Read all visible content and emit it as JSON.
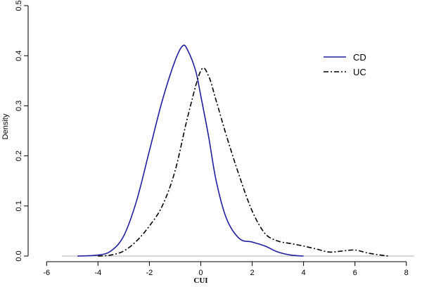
{
  "chart_data": {
    "type": "line",
    "title": "",
    "xlabel": "CUI",
    "ylabel": "Density",
    "xlim": [
      -6.5,
      8.5
    ],
    "ylim": [
      0,
      0.5
    ],
    "x_ticks": [
      -6,
      -4,
      -2,
      0,
      2,
      4,
      6,
      8
    ],
    "y_ticks": [
      0.0,
      0.1,
      0.2,
      0.3,
      0.4,
      0.5
    ],
    "x_tick_labels": [
      "-6",
      "-4",
      "-2",
      "0",
      "2",
      "4",
      "6",
      "8"
    ],
    "y_tick_labels": [
      "0.0",
      "0.1",
      "0.2",
      "0.3",
      "0.4",
      "0.5"
    ],
    "grid": false,
    "legend_position": "top-right",
    "baseline": 0,
    "series": [
      {
        "name": "CD",
        "color": "#1f1fa0",
        "style": "solid",
        "points": [
          [
            -4.8,
            0.0
          ],
          [
            -4.0,
            0.002
          ],
          [
            -3.5,
            0.01
          ],
          [
            -3.0,
            0.04
          ],
          [
            -2.5,
            0.11
          ],
          [
            -2.0,
            0.21
          ],
          [
            -1.5,
            0.31
          ],
          [
            -1.0,
            0.39
          ],
          [
            -0.7,
            0.42
          ],
          [
            -0.5,
            0.41
          ],
          [
            -0.2,
            0.37
          ],
          [
            0.0,
            0.32
          ],
          [
            0.3,
            0.24
          ],
          [
            0.6,
            0.15
          ],
          [
            1.0,
            0.075
          ],
          [
            1.5,
            0.035
          ],
          [
            2.0,
            0.028
          ],
          [
            2.5,
            0.02
          ],
          [
            3.0,
            0.008
          ],
          [
            3.5,
            0.002
          ],
          [
            4.0,
            0.0
          ]
        ]
      },
      {
        "name": "UC",
        "color": "#000000",
        "style": "dashdot",
        "points": [
          [
            -4.0,
            0.0
          ],
          [
            -3.5,
            0.002
          ],
          [
            -3.0,
            0.01
          ],
          [
            -2.5,
            0.03
          ],
          [
            -2.0,
            0.06
          ],
          [
            -1.5,
            0.1
          ],
          [
            -1.0,
            0.17
          ],
          [
            -0.5,
            0.28
          ],
          [
            0.0,
            0.37
          ],
          [
            0.3,
            0.36
          ],
          [
            0.6,
            0.31
          ],
          [
            1.0,
            0.24
          ],
          [
            1.5,
            0.16
          ],
          [
            2.0,
            0.09
          ],
          [
            2.5,
            0.045
          ],
          [
            3.0,
            0.03
          ],
          [
            3.5,
            0.025
          ],
          [
            4.0,
            0.02
          ],
          [
            4.5,
            0.014
          ],
          [
            5.0,
            0.008
          ],
          [
            5.5,
            0.01
          ],
          [
            6.0,
            0.012
          ],
          [
            6.5,
            0.006
          ],
          [
            7.0,
            0.002
          ],
          [
            7.3,
            0.0
          ]
        ]
      }
    ]
  }
}
